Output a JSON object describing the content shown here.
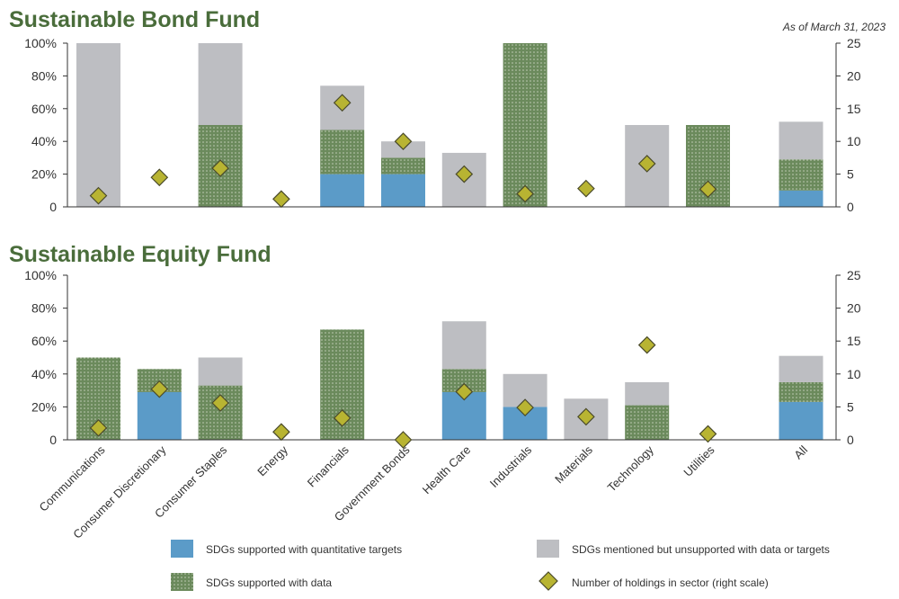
{
  "note": "As of March 31, 2023",
  "colors": {
    "title": "#4a6d3b",
    "quant": "#5b9bc8",
    "data": "#6b8a5c",
    "dot": "#c9d3be",
    "mentioned": "#bdbec2",
    "diamond": "#b8b432",
    "diamond_stroke": "#4a4a2a",
    "axis": "#333333"
  },
  "legend": {
    "quant": "SDGs supported with quantitative targets",
    "data": "SDGs supported with data",
    "mentioned": "SDGs mentioned but unsupported with data or targets",
    "holdings": "Number of holdings in sector (right scale)"
  },
  "chart_data": [
    {
      "type": "bar",
      "title": "Sustainable Bond Fund",
      "categories": [
        "Communications",
        "Consumer Discretionary",
        "Consumer Staples",
        "Energy",
        "Financials",
        "Government Bonds",
        "Health Care",
        "Industrials",
        "Materials",
        "Technology",
        "Utilities",
        "All"
      ],
      "stacked": true,
      "series": [
        {
          "name": "SDGs supported with quantitative targets",
          "values": [
            0,
            0,
            0,
            0,
            20,
            20,
            0,
            0,
            0,
            0,
            0,
            10
          ]
        },
        {
          "name": "SDGs supported with data",
          "values": [
            0,
            0,
            50,
            0,
            27,
            10,
            0,
            100,
            0,
            0,
            50,
            19
          ]
        },
        {
          "name": "SDGs mentioned but unsupported with data or targets",
          "values": [
            100,
            0,
            50,
            0,
            27,
            10,
            33,
            0,
            0,
            50,
            0,
            23
          ]
        },
        {
          "name": "Number of holdings in sector (right scale)",
          "axis": "right",
          "values": [
            1.7,
            4.5,
            5.9,
            1.2,
            15.9,
            10,
            5,
            2,
            2.8,
            6.6,
            2.7,
            null
          ]
        }
      ],
      "ylim": [
        0,
        100
      ],
      "y_ticks": [
        "0",
        "20%",
        "40%",
        "60%",
        "80%",
        "100%"
      ],
      "y2lim": [
        0,
        25
      ],
      "y2_ticks": [
        "0",
        "5",
        "10",
        "15",
        "20",
        "25"
      ]
    },
    {
      "type": "bar",
      "title": "Sustainable Equity Fund",
      "categories": [
        "Communications",
        "Consumer Discretionary",
        "Consumer Staples",
        "Energy",
        "Financials",
        "Government Bonds",
        "Health Care",
        "Industrials",
        "Materials",
        "Technology",
        "Utilities",
        "All"
      ],
      "stacked": true,
      "series": [
        {
          "name": "SDGs supported with quantitative targets",
          "values": [
            0,
            29,
            0,
            0,
            0,
            0,
            29,
            20,
            0,
            0,
            0,
            23
          ]
        },
        {
          "name": "SDGs supported with data",
          "values": [
            50,
            14,
            33,
            0,
            67,
            0,
            14,
            0,
            0,
            21,
            0,
            12
          ]
        },
        {
          "name": "SDGs mentioned but unsupported with data or targets",
          "values": [
            0,
            0,
            17,
            0,
            0,
            0,
            29,
            20,
            25,
            14,
            0,
            16
          ]
        },
        {
          "name": "Number of holdings in sector (right scale)",
          "axis": "right",
          "values": [
            1.8,
            7.7,
            5.6,
            1.2,
            3.3,
            0,
            7.3,
            4.9,
            3.5,
            14.4,
            0.9,
            null
          ]
        }
      ],
      "ylim": [
        0,
        100
      ],
      "y_ticks": [
        "0",
        "20%",
        "40%",
        "60%",
        "80%",
        "100%"
      ],
      "y2lim": [
        0,
        25
      ],
      "y2_ticks": [
        "0",
        "5",
        "10",
        "15",
        "20",
        "25"
      ]
    }
  ]
}
